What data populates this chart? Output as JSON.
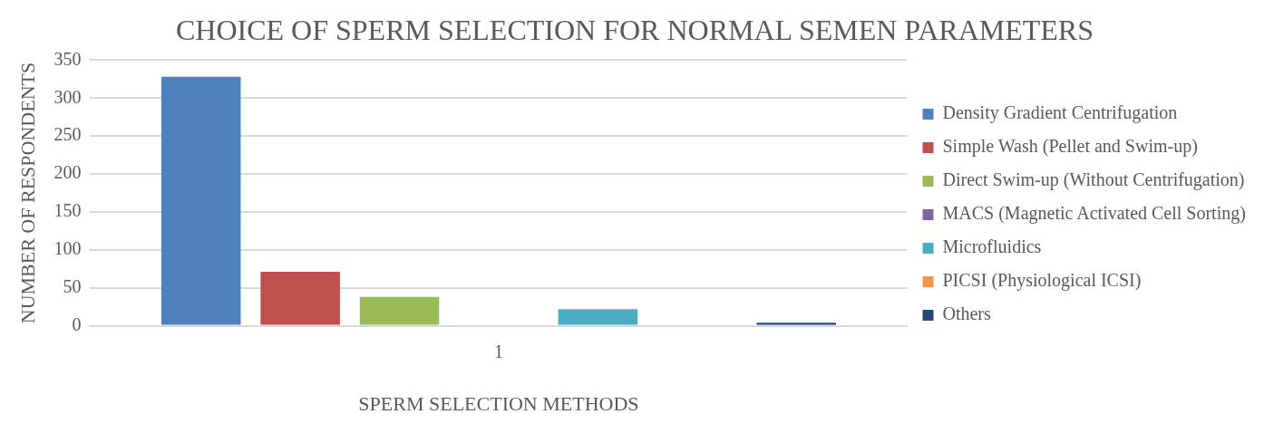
{
  "chart_data": {
    "type": "bar",
    "title": "CHOICE OF SPERM SELECTION FOR NORMAL SEMEN PARAMETERS",
    "xlabel": "SPERM SELECTION METHODS",
    "ylabel": "NUMBER OF RESPONDENTS",
    "categories": [
      "1"
    ],
    "series": [
      {
        "name": "Density Gradient Centrifugation",
        "color": "#4f81bd",
        "values": [
          328
        ]
      },
      {
        "name": "Simple Wash (Pellet and Swim-up)",
        "color": "#c0504d",
        "values": [
          71
        ]
      },
      {
        "name": "Direct Swim-up (Without Centrifugation)",
        "color": "#9bbb59",
        "values": [
          38
        ]
      },
      {
        "name": "MACS (Magnetic Activated Cell Sorting)",
        "color": "#8064a2",
        "values": [
          0
        ]
      },
      {
        "name": "Microfluidics",
        "color": "#4bacc6",
        "values": [
          22
        ]
      },
      {
        "name": "PICSI (Physiological ICSI)",
        "color": "#f79646",
        "values": [
          0
        ]
      },
      {
        "name": "Others",
        "color": "#1f497d",
        "values": [
          4
        ]
      }
    ],
    "ylim": [
      0,
      350
    ],
    "yticks": [
      0,
      50,
      100,
      150,
      200,
      250,
      300,
      350
    ],
    "grid": "y",
    "legend": "right"
  }
}
